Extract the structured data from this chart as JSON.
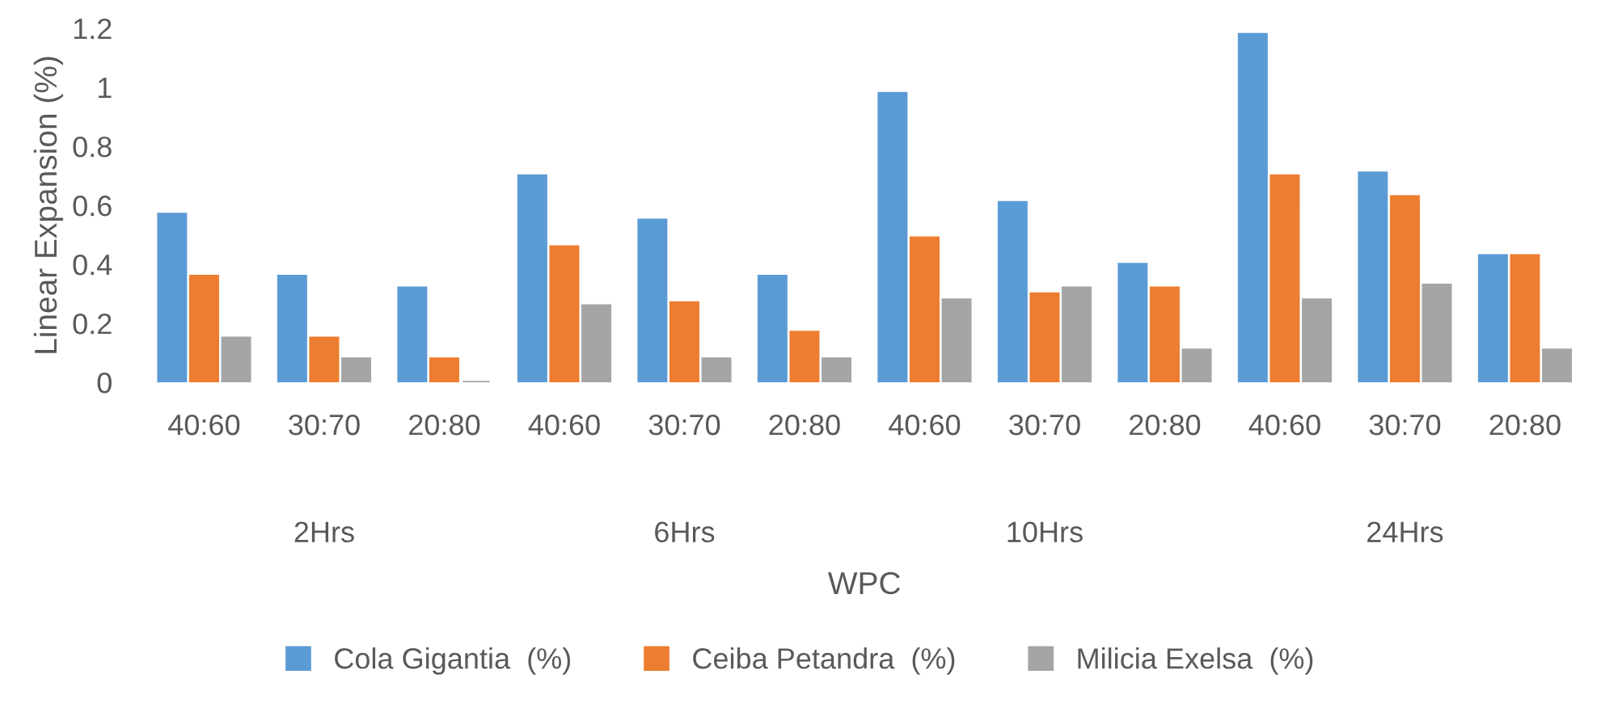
{
  "chart_data": {
    "type": "bar",
    "xlabel": "WPC",
    "ylabel": "Linear Expansion (%)",
    "categories": [
      "40:60",
      "30:70",
      "20:80",
      "40:60",
      "30:70",
      "20:80",
      "40:60",
      "30:70",
      "20:80",
      "40:60",
      "30:70",
      "20:80"
    ],
    "annotations": [
      "2Hrs",
      "6Hrs",
      "10Hrs",
      "24Hrs"
    ],
    "series": [
      {
        "name": "Cola Gigantia  (%)",
        "color": "#5b9bd5",
        "values": [
          0.57,
          0.36,
          0.32,
          0.7,
          0.55,
          0.36,
          0.98,
          0.61,
          0.4,
          1.18,
          0.71,
          0.43
        ]
      },
      {
        "name": "Ceiba Petandra  (%)",
        "color": "#ed7d31",
        "values": [
          0.36,
          0.15,
          0.08,
          0.46,
          0.27,
          0.17,
          0.49,
          0.3,
          0.32,
          0.7,
          0.63,
          0.43
        ]
      },
      {
        "name": "Milicia Exelsa  (%)",
        "color": "#a5a5a5",
        "values": [
          0.15,
          0.08,
          0.0,
          0.26,
          0.08,
          0.08,
          0.28,
          0.32,
          0.11,
          0.28,
          0.33,
          0.11
        ]
      }
    ],
    "ylim": [
      0,
      1.2
    ],
    "yticks": [
      0,
      0.2,
      0.4,
      0.6,
      0.8,
      1,
      1.2
    ],
    "grid": false,
    "legend": "bottom"
  }
}
